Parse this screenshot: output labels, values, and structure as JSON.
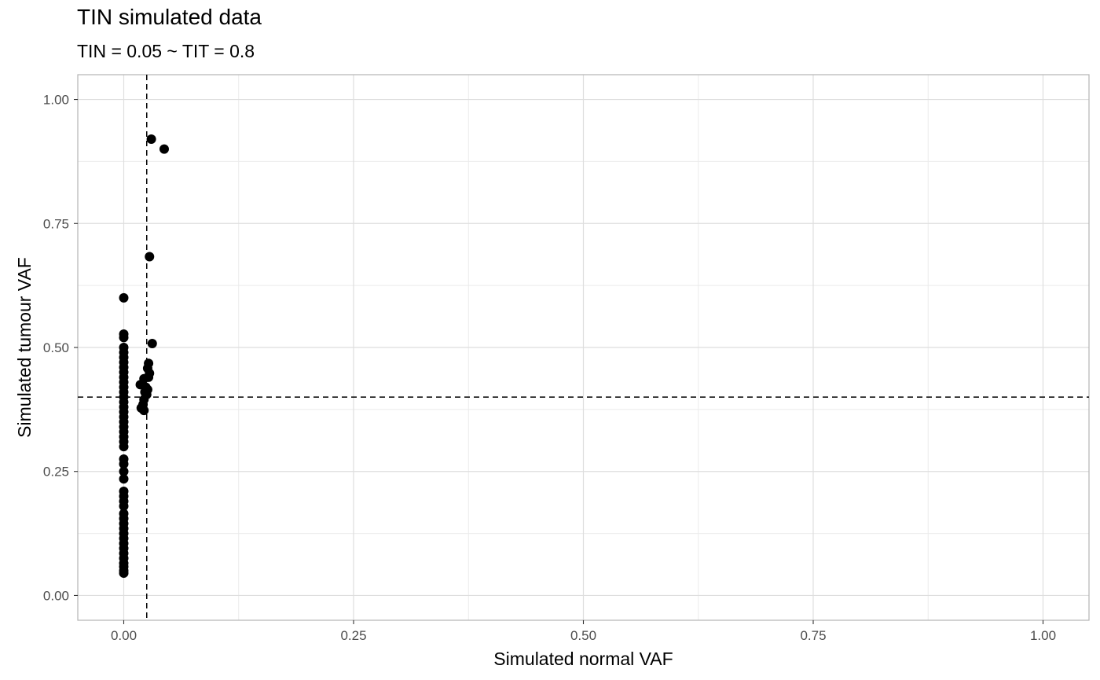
{
  "chart_data": {
    "type": "scatter",
    "title": "TIN simulated data",
    "subtitle": "TIN = 0.05 ~ TIT = 0.8",
    "xlabel": "Simulated normal VAF",
    "ylabel": "Simulated tumour VAF",
    "xlim": [
      -0.05,
      1.05
    ],
    "ylim": [
      -0.05,
      1.05
    ],
    "x_ticks": [
      "0.00",
      "0.25",
      "0.50",
      "0.75",
      "1.00"
    ],
    "y_ticks": [
      "0.00",
      "0.25",
      "0.50",
      "0.75",
      "1.00"
    ],
    "x_tick_values": [
      0,
      0.25,
      0.5,
      0.75,
      1.0
    ],
    "y_tick_values": [
      0,
      0.25,
      0.5,
      0.75,
      1.0
    ],
    "grid": true,
    "reference_lines": {
      "vertical_x": 0.025,
      "horizontal_y": 0.4,
      "style": "dashed"
    },
    "point_color": "#000000",
    "points": [
      [
        0,
        0.6
      ],
      [
        0,
        0.527
      ],
      [
        0,
        0.52
      ],
      [
        0,
        0.5
      ],
      [
        0,
        0.49
      ],
      [
        0,
        0.48
      ],
      [
        0,
        0.47
      ],
      [
        0,
        0.46
      ],
      [
        0,
        0.45
      ],
      [
        0,
        0.44
      ],
      [
        0,
        0.43
      ],
      [
        0,
        0.42
      ],
      [
        0,
        0.41
      ],
      [
        0,
        0.4
      ],
      [
        0,
        0.39
      ],
      [
        0,
        0.38
      ],
      [
        0,
        0.37
      ],
      [
        0,
        0.36
      ],
      [
        0,
        0.35
      ],
      [
        0,
        0.34
      ],
      [
        0,
        0.33
      ],
      [
        0,
        0.32
      ],
      [
        0,
        0.31
      ],
      [
        0,
        0.3
      ],
      [
        0,
        0.275
      ],
      [
        0,
        0.265
      ],
      [
        0,
        0.25
      ],
      [
        0,
        0.235
      ],
      [
        0,
        0.21
      ],
      [
        0,
        0.2
      ],
      [
        0,
        0.19
      ],
      [
        0,
        0.18
      ],
      [
        0,
        0.165
      ],
      [
        0,
        0.155
      ],
      [
        0,
        0.145
      ],
      [
        0,
        0.135
      ],
      [
        0,
        0.125
      ],
      [
        0,
        0.115
      ],
      [
        0,
        0.105
      ],
      [
        0,
        0.095
      ],
      [
        0,
        0.085
      ],
      [
        0,
        0.075
      ],
      [
        0,
        0.065
      ],
      [
        0,
        0.058
      ],
      [
        0,
        0.05
      ],
      [
        0,
        0.045
      ],
      [
        0.03,
        0.92
      ],
      [
        0.044,
        0.9
      ],
      [
        0.028,
        0.683
      ],
      [
        0.031,
        0.508
      ],
      [
        0.027,
        0.468
      ],
      [
        0.026,
        0.458
      ],
      [
        0.028,
        0.448
      ],
      [
        0.027,
        0.44
      ],
      [
        0.022,
        0.437
      ],
      [
        0.018,
        0.425
      ],
      [
        0.024,
        0.42
      ],
      [
        0.026,
        0.415
      ],
      [
        0.023,
        0.41
      ],
      [
        0.025,
        0.405
      ],
      [
        0.022,
        0.395
      ],
      [
        0.021,
        0.385
      ],
      [
        0.019,
        0.378
      ],
      [
        0.022,
        0.373
      ]
    ]
  }
}
